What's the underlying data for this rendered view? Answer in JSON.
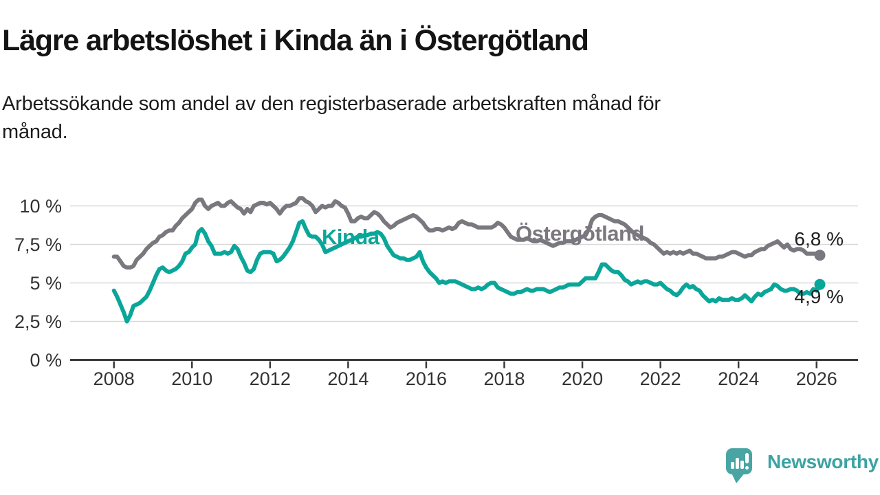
{
  "header": {
    "title": "Lägre arbetslöshet i Kinda än i Östergötland",
    "subtitle": "Arbetssökande som andel av den registerbaserade arbetskraften månad för månad."
  },
  "chart_data": {
    "type": "line",
    "title": "Lägre arbetslöshet i Kinda än i Östergötland",
    "x_start": "2008-01",
    "x_end": "2026-02",
    "x_tick_labels": [
      "2008",
      "2010",
      "2012",
      "2014",
      "2016",
      "2018",
      "2020",
      "2022",
      "2024",
      "2026"
    ],
    "y_ticks": [
      0,
      2.5,
      5,
      7.5,
      10
    ],
    "y_tick_labels": [
      "0 %",
      "2,5 %",
      "5 %",
      "7,5 %",
      "10 %"
    ],
    "ylim": [
      0,
      10.8
    ],
    "unit": "%",
    "grid": "horizontal",
    "legend_position": "inline-labels",
    "series": [
      {
        "name": "Östergötland",
        "color": "#7a787e",
        "end_value": 6.8,
        "end_label": "6,8 %",
        "values": [
          6.7,
          6.7,
          6.4,
          6.1,
          6.0,
          6.0,
          6.1,
          6.5,
          6.7,
          6.9,
          7.2,
          7.4,
          7.6,
          7.7,
          8.0,
          8.1,
          8.3,
          8.4,
          8.4,
          8.7,
          8.9,
          9.2,
          9.4,
          9.6,
          9.8,
          10.2,
          10.4,
          10.4,
          10.0,
          9.8,
          10.0,
          10.1,
          10.2,
          10.0,
          10.0,
          10.2,
          10.3,
          10.1,
          9.9,
          9.8,
          9.5,
          9.8,
          9.6,
          10.0,
          10.1,
          10.2,
          10.2,
          10.1,
          10.2,
          10.0,
          9.8,
          9.5,
          9.8,
          10.0,
          10.0,
          10.1,
          10.2,
          10.5,
          10.5,
          10.3,
          10.2,
          10.0,
          9.6,
          9.8,
          10.0,
          9.9,
          10.0,
          10.0,
          10.3,
          10.2,
          10.0,
          9.9,
          9.5,
          9.0,
          9.0,
          9.2,
          9.3,
          9.2,
          9.2,
          9.4,
          9.6,
          9.5,
          9.3,
          9.0,
          8.8,
          8.6,
          8.7,
          8.9,
          9.0,
          9.1,
          9.2,
          9.3,
          9.4,
          9.3,
          9.1,
          8.9,
          8.6,
          8.4,
          8.4,
          8.5,
          8.5,
          8.4,
          8.5,
          8.6,
          8.5,
          8.6,
          8.9,
          9.0,
          8.9,
          8.8,
          8.8,
          8.7,
          8.6,
          8.6,
          8.6,
          8.6,
          8.6,
          8.7,
          8.9,
          8.8,
          8.6,
          8.3,
          8.0,
          7.9,
          7.8,
          7.8,
          7.8,
          7.9,
          7.8,
          7.7,
          7.7,
          7.8,
          7.7,
          7.6,
          7.5,
          7.4,
          7.5,
          7.6,
          7.6,
          7.7,
          7.7,
          7.7,
          7.8,
          7.9,
          8.0,
          8.1,
          8.5,
          9.1,
          9.3,
          9.4,
          9.4,
          9.3,
          9.2,
          9.1,
          9.0,
          9.0,
          8.9,
          8.8,
          8.6,
          8.4,
          8.2,
          8.1,
          8.0,
          7.9,
          7.8,
          7.6,
          7.5,
          7.3,
          7.1,
          6.9,
          7.0,
          6.9,
          7.0,
          6.9,
          7.0,
          6.9,
          7.0,
          7.1,
          6.9,
          6.9,
          6.8,
          6.7,
          6.6,
          6.6,
          6.6,
          6.6,
          6.7,
          6.7,
          6.8,
          6.9,
          7.0,
          7.0,
          6.9,
          6.8,
          6.7,
          6.8,
          6.8,
          7.0,
          7.1,
          7.2,
          7.2,
          7.4,
          7.5,
          7.6,
          7.7,
          7.5,
          7.3,
          7.5,
          7.2,
          7.1,
          7.2,
          7.2,
          7.1,
          6.9,
          6.9,
          6.9,
          6.9,
          6.8
        ]
      },
      {
        "name": "Kinda",
        "color": "#0ba69a",
        "end_value": 4.9,
        "end_label": "4,9 %",
        "values": [
          4.5,
          4.1,
          3.6,
          3.1,
          2.5,
          2.9,
          3.5,
          3.6,
          3.7,
          3.9,
          4.1,
          4.5,
          5.0,
          5.5,
          5.9,
          6.0,
          5.8,
          5.7,
          5.8,
          5.9,
          6.1,
          6.4,
          6.9,
          7.0,
          7.3,
          7.5,
          8.3,
          8.5,
          8.2,
          7.7,
          7.4,
          6.9,
          6.9,
          6.9,
          7.0,
          6.9,
          7.0,
          7.4,
          7.2,
          6.7,
          6.3,
          5.8,
          5.7,
          5.9,
          6.5,
          6.9,
          7.0,
          7.0,
          7.0,
          6.9,
          6.4,
          6.5,
          6.7,
          7.0,
          7.3,
          7.7,
          8.3,
          8.9,
          9.0,
          8.5,
          8.1,
          8.0,
          8.0,
          7.8,
          7.5,
          7.0,
          7.1,
          7.2,
          7.3,
          7.4,
          7.5,
          7.6,
          7.7,
          7.8,
          7.9,
          8.0,
          8.0,
          8.1,
          8.1,
          8.2,
          8.2,
          8.3,
          8.2,
          7.9,
          7.4,
          7.1,
          6.8,
          6.7,
          6.6,
          6.6,
          6.5,
          6.5,
          6.6,
          6.7,
          7.0,
          6.4,
          6.0,
          5.7,
          5.5,
          5.3,
          5.0,
          5.1,
          5.0,
          5.1,
          5.1,
          5.1,
          5.0,
          4.9,
          4.8,
          4.7,
          4.6,
          4.6,
          4.7,
          4.6,
          4.7,
          4.9,
          5.0,
          5.0,
          4.7,
          4.6,
          4.5,
          4.4,
          4.3,
          4.3,
          4.4,
          4.4,
          4.5,
          4.6,
          4.5,
          4.5,
          4.6,
          4.6,
          4.6,
          4.5,
          4.4,
          4.5,
          4.6,
          4.7,
          4.7,
          4.8,
          4.9,
          4.9,
          4.9,
          4.9,
          5.1,
          5.3,
          5.3,
          5.3,
          5.3,
          5.7,
          6.2,
          6.2,
          6.0,
          5.8,
          5.7,
          5.7,
          5.5,
          5.2,
          5.1,
          4.9,
          5.0,
          5.1,
          5.0,
          5.1,
          5.1,
          5.0,
          4.9,
          4.9,
          5.0,
          4.8,
          4.6,
          4.5,
          4.3,
          4.2,
          4.4,
          4.7,
          4.9,
          4.7,
          4.8,
          4.6,
          4.5,
          4.2,
          4.0,
          3.8,
          3.9,
          3.8,
          4.0,
          3.9,
          3.9,
          3.9,
          4.0,
          3.9,
          3.9,
          4.0,
          4.2,
          4.0,
          3.8,
          4.1,
          4.3,
          4.2,
          4.4,
          4.5,
          4.6,
          4.9,
          4.8,
          4.6,
          4.5,
          4.5,
          4.6,
          4.6,
          4.5,
          4.3,
          4.3,
          4.4,
          4.3,
          4.6,
          4.5,
          4.9
        ]
      }
    ]
  },
  "branding": {
    "logo_text": "Newsworthy",
    "logo_color": "#3ba3a3",
    "logo_bubble_color": "#48a5a3"
  },
  "colors": {
    "grid": "#d9d9d9",
    "axis": "#3a3a3a",
    "tick_text": "#333333",
    "end_label_text": "#1f1f1f"
  }
}
